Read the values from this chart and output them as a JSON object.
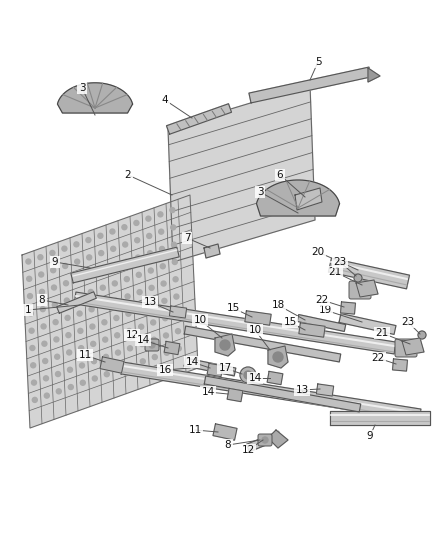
{
  "background_color": "#ffffff",
  "figure_size": [
    4.38,
    5.33
  ],
  "dpi": 100,
  "line_color": "#444444",
  "label_color": "#111111",
  "label_fontsize": 7.5,
  "panel_fill": "#d8d8d8",
  "panel_line": "#555555",
  "part_fill": "#bbbbbb",
  "part_dark": "#666666",
  "part_light": "#eeeeee"
}
